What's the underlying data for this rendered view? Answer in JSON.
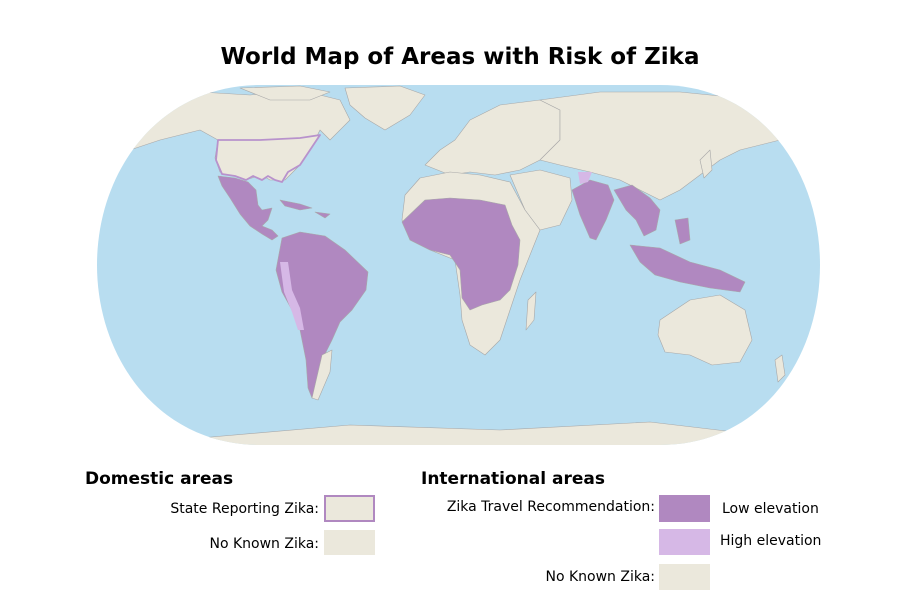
{
  "title": "World Map of Areas with Risk of Zika",
  "colors": {
    "ocean": "#b8ddf0",
    "land": "#ebe8dc",
    "low_elevation": "#b088c0",
    "high_elevation": "#d6b8e6",
    "state_border": "#a070b8",
    "country_border": "#9a9a9a"
  },
  "legend": {
    "domestic": {
      "heading": "Domestic areas",
      "state_reporting_label": "State Reporting Zika:",
      "no_known_label": "No Known Zika:"
    },
    "international": {
      "heading": "International areas",
      "travel_rec_label": "Zika Travel Recommendation:",
      "low_elevation_label": "Low elevation",
      "high_elevation_label": "High elevation",
      "no_known_label": "No Known Zika:"
    }
  }
}
